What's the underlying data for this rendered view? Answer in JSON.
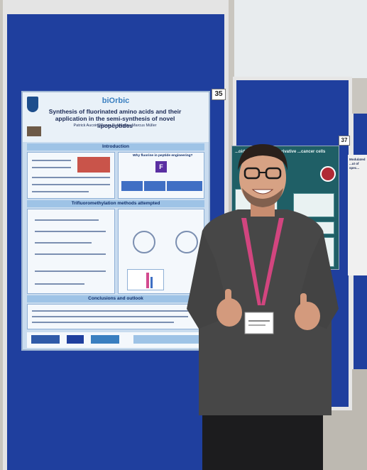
{
  "poster_main": {
    "brand": "biOrbic",
    "number": "35",
    "title": "Synthesis of fluorinated amino acids and their application in the semi-synthesis of novel lipopeptides",
    "authors": "Patrick Aucoin, Conor D. Murphy, Marcus Müller",
    "sections": {
      "introduction": "Introduction",
      "trifluoromethylation": "Trifluoromethylation methods attempted",
      "conclusions": "Conclusions and outlook"
    },
    "intro_right_label": "Why fluorine in peptide engineering?",
    "f_glyph": "F"
  },
  "poster_right": {
    "number": "37",
    "title": "...oid Growth Factor derivative ...cancer cells"
  },
  "far_poster": {
    "title": "Modulated ...ut of spec..."
  },
  "lanyard_badge": {
    "text": ""
  },
  "colors": {
    "board_blue": "#1f3f9e",
    "poster_main_bg": "#c9dcef",
    "poster_right_bg": "#1f5f66",
    "lanyard": "#d2457f",
    "sweater": "#474747"
  }
}
